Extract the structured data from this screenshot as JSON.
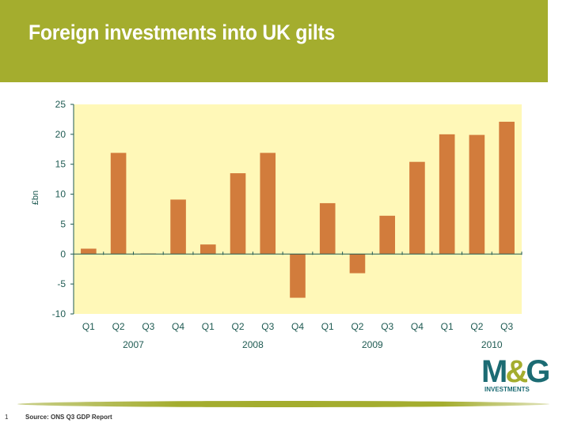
{
  "header": {
    "title": "Foreign investments into UK gilts"
  },
  "chart_data": {
    "type": "bar",
    "title": "Foreign investments into UK gilts",
    "ylabel": "£bn",
    "xlabel": "",
    "ylim": [
      -10,
      25
    ],
    "yticks": [
      25,
      20,
      15,
      10,
      5,
      0,
      -5,
      -10
    ],
    "categories": [
      "Q1",
      "Q2",
      "Q3",
      "Q4",
      "Q1",
      "Q2",
      "Q3",
      "Q4",
      "Q1",
      "Q2",
      "Q3",
      "Q4",
      "Q1",
      "Q2",
      "Q3"
    ],
    "years": [
      {
        "label": "2007",
        "center_after_index": 1
      },
      {
        "label": "2008",
        "center_after_index": 5
      },
      {
        "label": "2009",
        "center_after_index": 9
      },
      {
        "label": "2010",
        "center_after_index": 13
      }
    ],
    "values": [
      0.9,
      16.9,
      0.1,
      9.1,
      1.6,
      13.5,
      16.9,
      -7.3,
      8.5,
      -3.2,
      6.4,
      15.4,
      20.0,
      19.9,
      22.1
    ],
    "colors": {
      "bar": "#d27c3c",
      "plot_bg": "#fff8b8",
      "axis": "#1e5a52",
      "text": "#1e5a52"
    },
    "grid": false,
    "legend": "none"
  },
  "logo": {
    "main_m": "M",
    "main_amp": "&",
    "main_g": "G",
    "sub": "INVESTMENTS"
  },
  "footer": {
    "page": "1",
    "source": "Source: ONS Q3 GDP Report"
  }
}
